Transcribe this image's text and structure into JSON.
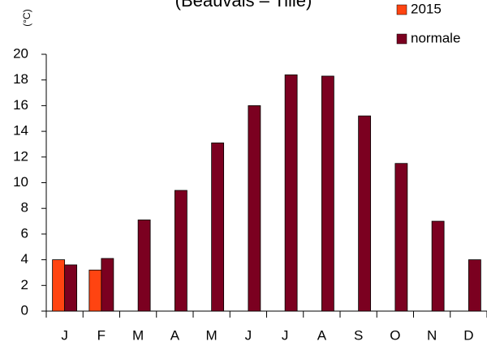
{
  "chart_data": {
    "type": "bar",
    "title": "(Beauvais – Tillé)",
    "y_label": "(°C)",
    "categories": [
      "J",
      "F",
      "M",
      "A",
      "M",
      "J",
      "J",
      "A",
      "S",
      "O",
      "N",
      "D"
    ],
    "series": [
      {
        "name": "2015",
        "color": "#ff4411",
        "values": [
          4.0,
          3.2,
          null,
          null,
          null,
          null,
          null,
          null,
          null,
          null,
          null,
          null
        ]
      },
      {
        "name": "normale",
        "color": "#7b0020",
        "values": [
          3.6,
          4.1,
          7.1,
          9.4,
          13.1,
          16.0,
          18.4,
          18.3,
          15.2,
          11.5,
          7.0,
          4.0
        ]
      }
    ],
    "ylim": [
      0,
      20
    ],
    "yticks": [
      0,
      2,
      4,
      6,
      8,
      10,
      12,
      14,
      16,
      18,
      20
    ],
    "legend": "top-right"
  }
}
